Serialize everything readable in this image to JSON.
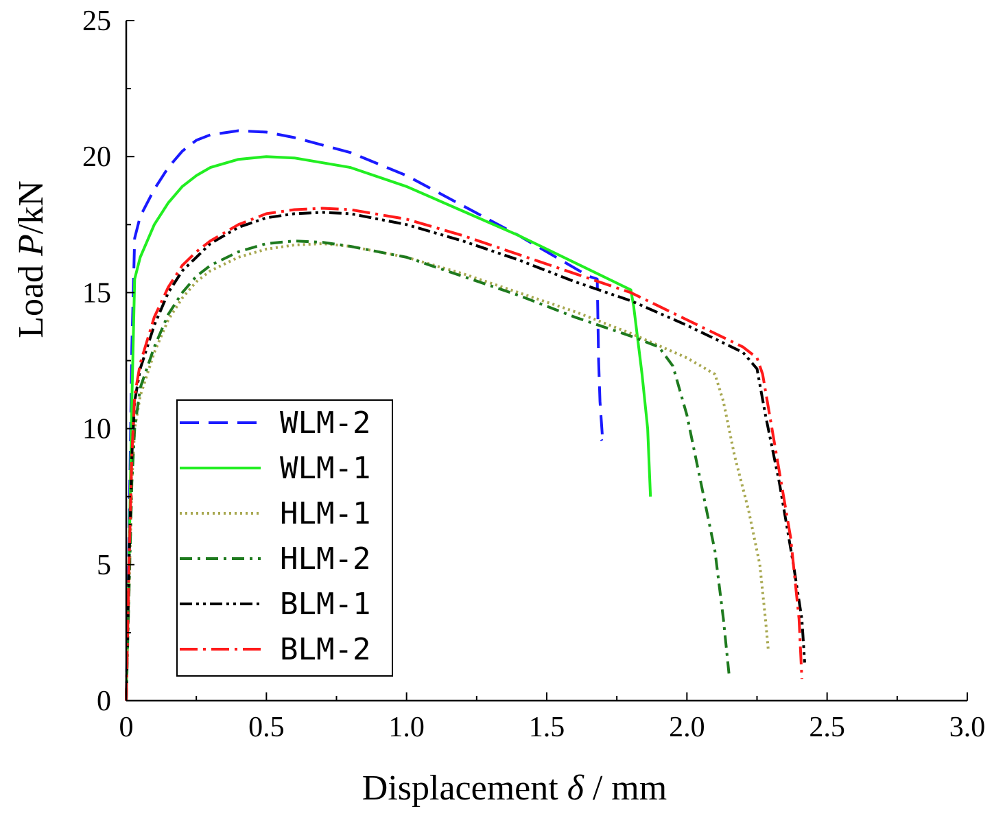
{
  "chart_data": {
    "type": "line",
    "title": "",
    "xlabel": {
      "prefix": "Displacement ",
      "symbol": "δ",
      "suffix": " / mm"
    },
    "ylabel": {
      "prefix": "Load  ",
      "symbol": "P",
      "suffix": "/kN"
    },
    "xlim": [
      0,
      3.0
    ],
    "ylim": [
      0,
      25
    ],
    "xticks": [
      {
        "value": 0,
        "label": "0"
      },
      {
        "value": 0.5,
        "label": "0.5"
      },
      {
        "value": 1.0,
        "label": "1.0"
      },
      {
        "value": 1.5,
        "label": "1.5"
      },
      {
        "value": 2.0,
        "label": "2.0"
      },
      {
        "value": 2.5,
        "label": "2.5"
      },
      {
        "value": 3.0,
        "label": "3.0"
      }
    ],
    "yticks": [
      {
        "value": 0,
        "label": "0"
      },
      {
        "value": 5,
        "label": "5"
      },
      {
        "value": 10,
        "label": "10"
      },
      {
        "value": 15,
        "label": "15"
      },
      {
        "value": 20,
        "label": "20"
      },
      {
        "value": 25,
        "label": "25"
      }
    ],
    "grid": false,
    "legend_position": "lower-left",
    "series": [
      {
        "name": "WLM-2",
        "color": "#1a1aff",
        "dash": "28,14",
        "x": [
          0,
          0.01,
          0.02,
          0.03,
          0.05,
          0.1,
          0.15,
          0.2,
          0.25,
          0.3,
          0.4,
          0.5,
          0.6,
          0.8,
          1.0,
          1.2,
          1.4,
          1.55,
          1.65,
          1.68,
          1.685,
          1.69,
          1.7,
          1.695
        ],
        "y": [
          0,
          6,
          13,
          17,
          17.8,
          18.8,
          19.6,
          20.2,
          20.6,
          20.8,
          20.95,
          20.9,
          20.7,
          20.15,
          19.3,
          18.2,
          17.1,
          16.2,
          15.6,
          15.5,
          12.5,
          11,
          9.5,
          9.6
        ]
      },
      {
        "name": "WLM-1",
        "color": "#22ee22",
        "dash": "",
        "x": [
          0,
          0.01,
          0.02,
          0.03,
          0.05,
          0.1,
          0.15,
          0.2,
          0.25,
          0.3,
          0.4,
          0.5,
          0.6,
          0.8,
          1.0,
          1.2,
          1.4,
          1.6,
          1.7,
          1.8,
          1.81,
          1.84,
          1.86,
          1.87
        ],
        "y": [
          0,
          5,
          11,
          15.5,
          16.3,
          17.5,
          18.3,
          18.9,
          19.3,
          19.6,
          19.9,
          20.0,
          19.95,
          19.6,
          18.9,
          18.0,
          17.1,
          16.1,
          15.6,
          15.1,
          14.5,
          12,
          10,
          7.5
        ]
      },
      {
        "name": "HLM-1",
        "color": "#a8a850",
        "dash": "3,5",
        "x": [
          0,
          0.01,
          0.02,
          0.03,
          0.05,
          0.1,
          0.15,
          0.2,
          0.25,
          0.3,
          0.4,
          0.5,
          0.6,
          0.7,
          0.8,
          1.0,
          1.2,
          1.4,
          1.6,
          1.8,
          2.0,
          2.1,
          2.13,
          2.17,
          2.22,
          2.26,
          2.28,
          2.29
        ],
        "y": [
          0,
          4,
          8,
          10,
          11.2,
          12.8,
          14,
          14.8,
          15.4,
          15.8,
          16.3,
          16.6,
          16.75,
          16.8,
          16.7,
          16.3,
          15.7,
          15.0,
          14.3,
          13.5,
          12.6,
          12.0,
          11.0,
          9.0,
          7.0,
          5.0,
          3.0,
          1.9
        ]
      },
      {
        "name": "HLM-2",
        "color": "#1e7a1e",
        "dash": "18,8,4,8",
        "x": [
          0,
          0.01,
          0.02,
          0.03,
          0.05,
          0.1,
          0.15,
          0.2,
          0.25,
          0.3,
          0.4,
          0.5,
          0.6,
          0.7,
          0.8,
          1.0,
          1.2,
          1.4,
          1.6,
          1.8,
          1.9,
          1.95,
          2.0,
          2.05,
          2.1,
          2.13,
          2.15
        ],
        "y": [
          0,
          4,
          8,
          10,
          11.5,
          13,
          14.2,
          15,
          15.6,
          16,
          16.5,
          16.8,
          16.9,
          16.85,
          16.7,
          16.3,
          15.6,
          14.9,
          14.1,
          13.4,
          13.0,
          12.3,
          10.5,
          8.0,
          5.5,
          3.0,
          1.0
        ]
      },
      {
        "name": "BLM-1",
        "color": "#000000",
        "dash": "18,6,4,6,4,6",
        "x": [
          0,
          0.01,
          0.02,
          0.03,
          0.05,
          0.1,
          0.15,
          0.2,
          0.25,
          0.3,
          0.4,
          0.5,
          0.6,
          0.7,
          0.8,
          1.0,
          1.2,
          1.4,
          1.6,
          1.8,
          2.0,
          2.2,
          2.25,
          2.28,
          2.33,
          2.38,
          2.41,
          2.42
        ],
        "y": [
          0,
          5,
          9,
          11,
          12.2,
          13.8,
          15,
          15.8,
          16.3,
          16.8,
          17.4,
          17.75,
          17.9,
          17.95,
          17.9,
          17.5,
          16.9,
          16.2,
          15.4,
          14.7,
          13.8,
          12.8,
          12.2,
          10.5,
          8.0,
          5.0,
          3.0,
          1.4
        ]
      },
      {
        "name": "BLM-2",
        "color": "#ff1a1a",
        "dash": "26,8,4,8",
        "x": [
          0,
          0.01,
          0.02,
          0.03,
          0.05,
          0.1,
          0.15,
          0.2,
          0.25,
          0.3,
          0.4,
          0.5,
          0.6,
          0.7,
          0.8,
          1.0,
          1.2,
          1.4,
          1.6,
          1.8,
          2.0,
          2.2,
          2.25,
          2.27,
          2.32,
          2.37,
          2.4,
          2.41
        ],
        "y": [
          0,
          5,
          9,
          11.2,
          12.4,
          14.1,
          15.2,
          16,
          16.5,
          16.9,
          17.5,
          17.9,
          18.05,
          18.1,
          18.05,
          17.7,
          17.1,
          16.4,
          15.7,
          15.0,
          14.0,
          13.0,
          12.6,
          12.0,
          9.0,
          6.0,
          3.0,
          0.8
        ]
      }
    ]
  }
}
